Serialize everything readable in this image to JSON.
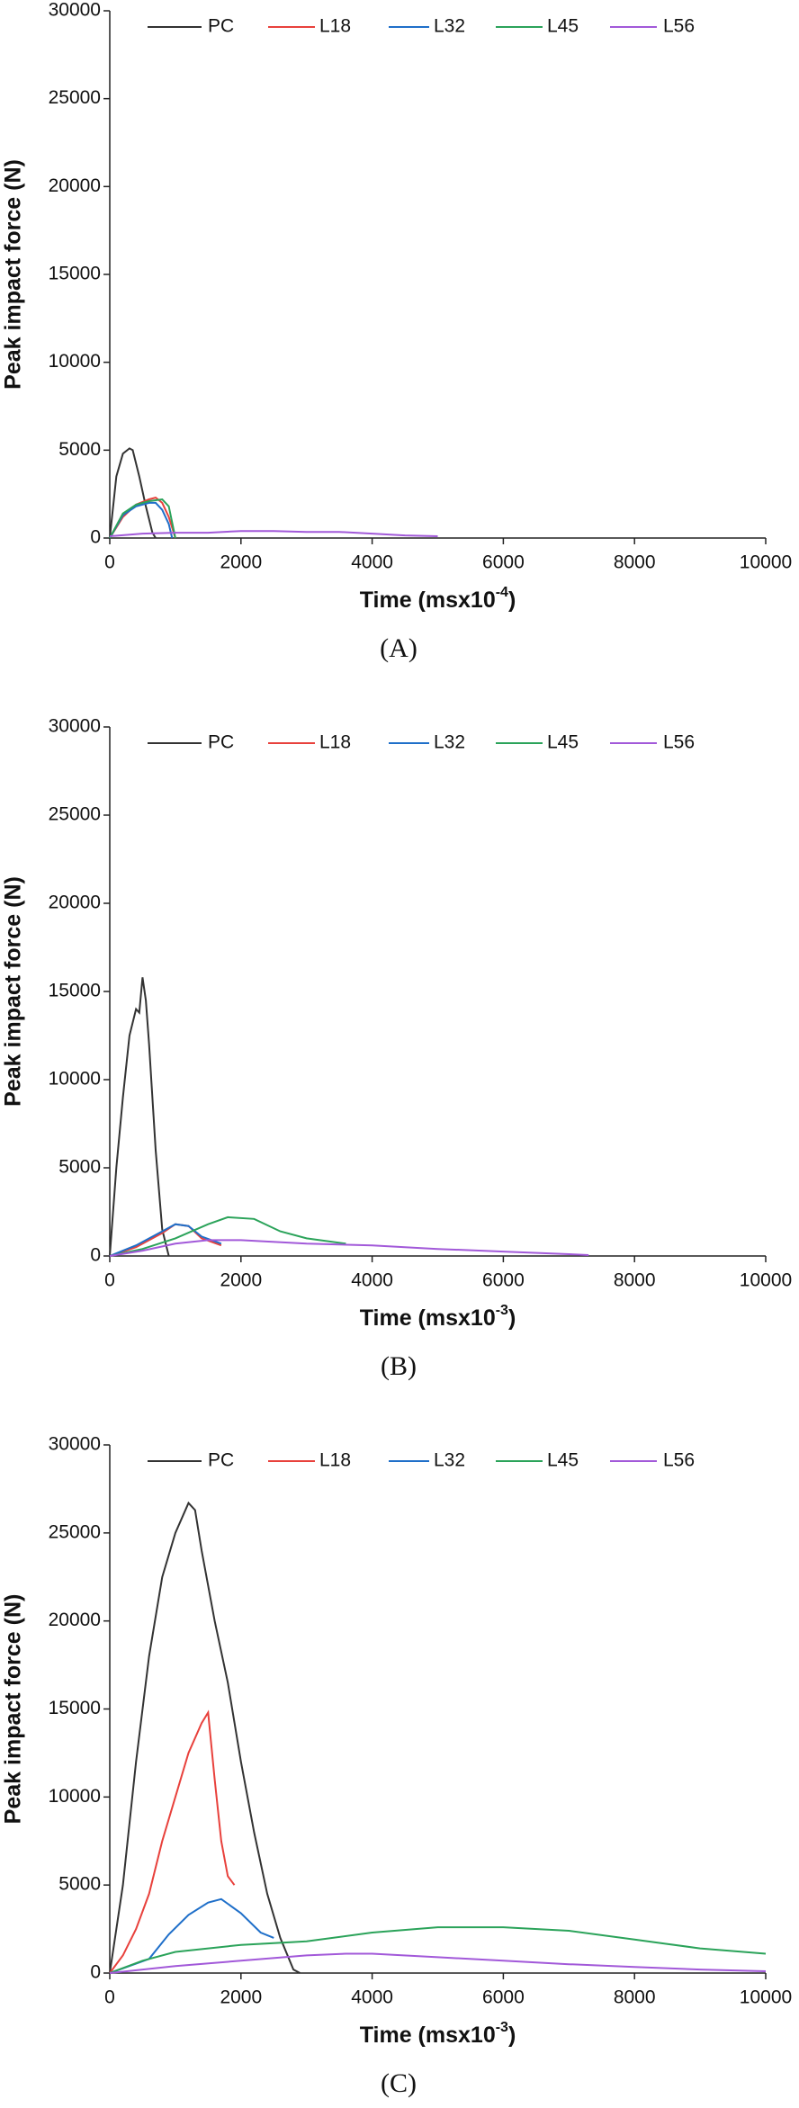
{
  "chart_data": [
    {
      "type": "line",
      "panel_label": "(A)",
      "y_label": "Peak impact force (N)",
      "x_label": "Time (msx10",
      "x_label_sup": "-4",
      "x_label_end": ")",
      "xlim": [
        0,
        10000
      ],
      "xticks": [
        0,
        2000,
        4000,
        6000,
        8000,
        10000
      ],
      "ylim": [
        0,
        30000
      ],
      "yticks": [
        0,
        5000,
        10000,
        15000,
        20000,
        25000,
        30000
      ],
      "series": [
        {
          "name": "PC",
          "color": "#333333",
          "x": [
            0,
            100,
            200,
            300,
            350,
            450,
            550,
            650,
            700
          ],
          "values": [
            0,
            3500,
            4800,
            5100,
            5000,
            3500,
            1800,
            300,
            0
          ]
        },
        {
          "name": "L18",
          "color": "#e8413c",
          "x": [
            0,
            200,
            400,
            600,
            700,
            800,
            900,
            1000
          ],
          "values": [
            0,
            1200,
            1900,
            2200,
            2300,
            2000,
            1200,
            0
          ]
        },
        {
          "name": "L32",
          "color": "#1f6fc9",
          "x": [
            0,
            200,
            400,
            600,
            700,
            800,
            900,
            950
          ],
          "values": [
            0,
            1300,
            1800,
            2000,
            2000,
            1600,
            800,
            0
          ]
        },
        {
          "name": "L45",
          "color": "#2ba35a",
          "x": [
            0,
            200,
            400,
            600,
            800,
            900,
            1000
          ],
          "values": [
            0,
            1400,
            1900,
            2100,
            2200,
            1800,
            0
          ]
        },
        {
          "name": "L56",
          "color": "#a259d9",
          "x": [
            0,
            500,
            1000,
            1500,
            2000,
            2500,
            3000,
            3500,
            4000,
            4500,
            5000
          ],
          "values": [
            100,
            250,
            300,
            300,
            400,
            400,
            350,
            350,
            250,
            150,
            100
          ]
        }
      ]
    },
    {
      "type": "line",
      "panel_label": "(B)",
      "y_label": "Peak impact force (N)",
      "x_label": "Time (msx10",
      "x_label_sup": "-3",
      "x_label_end": ")",
      "xlim": [
        0,
        10000
      ],
      "xticks": [
        0,
        2000,
        4000,
        6000,
        8000,
        10000
      ],
      "ylim": [
        0,
        30000
      ],
      "yticks": [
        0,
        5000,
        10000,
        15000,
        20000,
        25000,
        30000
      ],
      "series": [
        {
          "name": "PC",
          "color": "#333333",
          "x": [
            0,
            100,
            200,
            300,
            400,
            450,
            500,
            550,
            600,
            700,
            800,
            900
          ],
          "values": [
            0,
            5000,
            9000,
            12500,
            14000,
            13800,
            15800,
            14500,
            12000,
            6000,
            1500,
            0
          ]
        },
        {
          "name": "L18",
          "color": "#e8413c",
          "x": [
            0,
            400,
            800,
            1000,
            1200,
            1400,
            1700
          ],
          "values": [
            0,
            500,
            1300,
            1800,
            1700,
            1000,
            600
          ]
        },
        {
          "name": "L32",
          "color": "#1f6fc9",
          "x": [
            0,
            400,
            800,
            1000,
            1200,
            1400,
            1700
          ],
          "values": [
            0,
            600,
            1400,
            1800,
            1700,
            1100,
            700
          ]
        },
        {
          "name": "L45",
          "color": "#2ba35a",
          "x": [
            0,
            500,
            1000,
            1500,
            1800,
            2200,
            2600,
            3000,
            3600
          ],
          "values": [
            0,
            400,
            1000,
            1800,
            2200,
            2100,
            1400,
            1000,
            700
          ]
        },
        {
          "name": "L56",
          "color": "#a259d9",
          "x": [
            0,
            500,
            1000,
            1500,
            2000,
            3000,
            4000,
            5000,
            6000,
            7000,
            7300
          ],
          "values": [
            0,
            300,
            700,
            900,
            900,
            700,
            600,
            400,
            250,
            100,
            50
          ]
        }
      ]
    },
    {
      "type": "line",
      "panel_label": "(C)",
      "y_label": "Peak impact force (N)",
      "x_label": "Time (msx10",
      "x_label_sup": "-3",
      "x_label_end": ")",
      "xlim": [
        0,
        10000
      ],
      "xticks": [
        0,
        2000,
        4000,
        6000,
        8000,
        10000
      ],
      "ylim": [
        0,
        30000
      ],
      "yticks": [
        0,
        5000,
        10000,
        15000,
        20000,
        25000,
        30000
      ],
      "series": [
        {
          "name": "PC",
          "color": "#333333",
          "x": [
            0,
            200,
            400,
            600,
            800,
            1000,
            1200,
            1300,
            1400,
            1600,
            1800,
            2000,
            2200,
            2400,
            2600,
            2800,
            2900
          ],
          "values": [
            0,
            5000,
            12000,
            18000,
            22500,
            25000,
            26700,
            26300,
            24000,
            20000,
            16500,
            12000,
            8000,
            4500,
            2000,
            200,
            0
          ]
        },
        {
          "name": "L18",
          "color": "#e8413c",
          "x": [
            0,
            200,
            400,
            600,
            800,
            1000,
            1200,
            1400,
            1500,
            1600,
            1700,
            1800,
            1900
          ],
          "values": [
            0,
            1000,
            2500,
            4500,
            7500,
            10000,
            12500,
            14200,
            14800,
            11000,
            7500,
            5500,
            5000
          ]
        },
        {
          "name": "L32",
          "color": "#1f6fc9",
          "x": [
            0,
            300,
            600,
            900,
            1200,
            1500,
            1700,
            2000,
            2300,
            2500
          ],
          "values": [
            0,
            400,
            800,
            2200,
            3300,
            4000,
            4200,
            3400,
            2300,
            2000
          ]
        },
        {
          "name": "L45",
          "color": "#2ba35a",
          "x": [
            0,
            500,
            1000,
            2000,
            3000,
            4000,
            5000,
            6000,
            7000,
            8000,
            9000,
            10000
          ],
          "values": [
            0,
            700,
            1200,
            1600,
            1800,
            2300,
            2600,
            2600,
            2400,
            1900,
            1400,
            1100
          ]
        },
        {
          "name": "L56",
          "color": "#a259d9",
          "x": [
            0,
            1000,
            2000,
            3000,
            3600,
            4000,
            5000,
            6000,
            7000,
            8000,
            9000,
            10000
          ],
          "values": [
            0,
            400,
            700,
            1000,
            1100,
            1100,
            900,
            700,
            500,
            350,
            200,
            100
          ]
        }
      ]
    }
  ]
}
